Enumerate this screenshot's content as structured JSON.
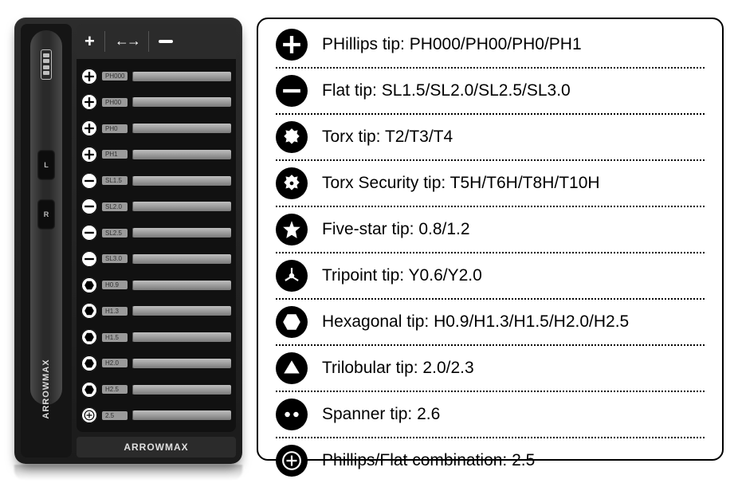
{
  "brand": "ARROWMAX",
  "driver": {
    "battery_bars": 4,
    "button_l_label": "L",
    "button_r_label": "R"
  },
  "header": {
    "plus": "+",
    "minus_width": 18
  },
  "bits": [
    {
      "icon": "phillips",
      "label": "PH000"
    },
    {
      "icon": "phillips",
      "label": "PH00"
    },
    {
      "icon": "phillips",
      "label": "PH0"
    },
    {
      "icon": "phillips",
      "label": "PH1"
    },
    {
      "icon": "flat",
      "label": "SL1.5"
    },
    {
      "icon": "flat",
      "label": "SL2.0"
    },
    {
      "icon": "flat",
      "label": "SL2.5"
    },
    {
      "icon": "flat",
      "label": "SL3.0"
    },
    {
      "icon": "hex",
      "label": "H0.9"
    },
    {
      "icon": "hex",
      "label": "H1.3"
    },
    {
      "icon": "hex",
      "label": "H1.5"
    },
    {
      "icon": "hex",
      "label": "H2.0"
    },
    {
      "icon": "hex",
      "label": "H2.5"
    },
    {
      "icon": "combo",
      "label": "2.5"
    }
  ],
  "legend": [
    {
      "icon": "phillips",
      "text": "PHillips tip: PH000/PH00/PH0/PH1"
    },
    {
      "icon": "flat",
      "text": "Flat tip: SL1.5/SL2.0/SL2.5/SL3.0"
    },
    {
      "icon": "torx",
      "text": "Torx tip: T2/T3/T4"
    },
    {
      "icon": "torxsec",
      "text": "Torx Security tip: T5H/T6H/T8H/T10H"
    },
    {
      "icon": "star5",
      "text": "Five-star tip: 0.8/1.2"
    },
    {
      "icon": "tripoint",
      "text": "Tripoint tip: Y0.6/Y2.0"
    },
    {
      "icon": "hex",
      "text": "Hexagonal tip: H0.9/H1.3/H1.5/H2.0/H2.5"
    },
    {
      "icon": "trilobular",
      "text": "Trilobular tip: 2.0/2.3"
    },
    {
      "icon": "spanner",
      "text": "Spanner tip: 2.6"
    },
    {
      "icon": "combo",
      "text": "Phillips/Flat combination: 2.5"
    }
  ],
  "colors": {
    "case_bg": "#1b1b1b",
    "legend_border": "#000000",
    "legend_text": "#000000",
    "bit_bar": "#9a9a9a"
  }
}
